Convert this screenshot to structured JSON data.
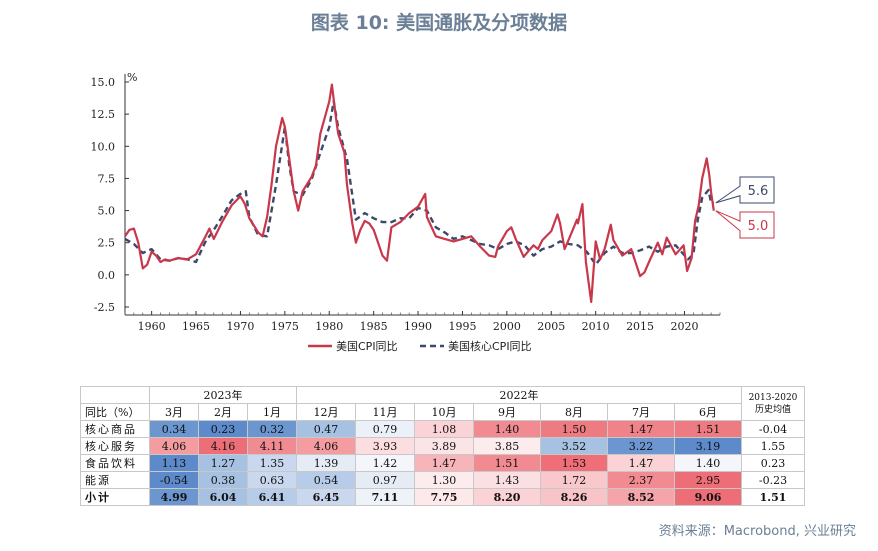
{
  "title": "图表 10: 美国通胀及分项数据",
  "source": "资料来源：Macrobond, 兴业研究",
  "chart_data": {
    "type": "line",
    "y_unit": "%",
    "ylim": [
      -2.5,
      15.0
    ],
    "yticks": [
      "15.0",
      "12.5",
      "10.0",
      "7.5",
      "5.0",
      "2.5",
      "0.0",
      "-2.5"
    ],
    "xlim": [
      1957,
      2024
    ],
    "xticks": [
      "1960",
      "1965",
      "1970",
      "1975",
      "1980",
      "1985",
      "1990",
      "1995",
      "2000",
      "2005",
      "2010",
      "2015",
      "2020"
    ],
    "series": [
      {
        "name": "美国CPI同比",
        "color": "#c8374a",
        "style": "solid",
        "end_label": "5.0",
        "points": [
          [
            1957,
            3.0
          ],
          [
            1957.5,
            3.5
          ],
          [
            1958,
            3.6
          ],
          [
            1958.5,
            2.5
          ],
          [
            1959,
            0.5
          ],
          [
            1959.5,
            0.8
          ],
          [
            1960,
            1.8
          ],
          [
            1960.5,
            1.5
          ],
          [
            1961,
            1.0
          ],
          [
            1961.5,
            1.2
          ],
          [
            1962,
            1.1
          ],
          [
            1963,
            1.3
          ],
          [
            1964,
            1.2
          ],
          [
            1965,
            1.6
          ],
          [
            1966,
            2.9
          ],
          [
            1966.5,
            3.6
          ],
          [
            1967,
            2.8
          ],
          [
            1968,
            4.2
          ],
          [
            1969,
            5.4
          ],
          [
            1970,
            6.1
          ],
          [
            1970.5,
            5.5
          ],
          [
            1971,
            4.4
          ],
          [
            1972,
            3.3
          ],
          [
            1972.5,
            3.0
          ],
          [
            1973,
            4.5
          ],
          [
            1973.5,
            7.0
          ],
          [
            1974,
            10.0
          ],
          [
            1974.7,
            12.2
          ],
          [
            1975,
            11.5
          ],
          [
            1975.5,
            9.0
          ],
          [
            1976,
            6.5
          ],
          [
            1976.5,
            5.0
          ],
          [
            1977,
            6.5
          ],
          [
            1978,
            7.6
          ],
          [
            1978.5,
            8.5
          ],
          [
            1979,
            11.0
          ],
          [
            1980,
            13.5
          ],
          [
            1980.3,
            14.8
          ],
          [
            1980.7,
            12.5
          ],
          [
            1981,
            11.0
          ],
          [
            1981.7,
            9.5
          ],
          [
            1982,
            7.0
          ],
          [
            1982.6,
            4.0
          ],
          [
            1983,
            2.5
          ],
          [
            1983.5,
            3.5
          ],
          [
            1984,
            4.2
          ],
          [
            1984.5,
            4.0
          ],
          [
            1985,
            3.5
          ],
          [
            1986,
            1.5
          ],
          [
            1986.5,
            1.1
          ],
          [
            1987,
            3.7
          ],
          [
            1988,
            4.1
          ],
          [
            1989,
            4.8
          ],
          [
            1990,
            5.3
          ],
          [
            1990.8,
            6.3
          ],
          [
            1991,
            4.5
          ],
          [
            1992,
            3.0
          ],
          [
            1993,
            2.8
          ],
          [
            1994,
            2.6
          ],
          [
            1995,
            2.8
          ],
          [
            1996,
            3.0
          ],
          [
            1997,
            2.2
          ],
          [
            1998,
            1.5
          ],
          [
            1998.7,
            1.4
          ],
          [
            1999,
            2.2
          ],
          [
            2000,
            3.4
          ],
          [
            2000.5,
            3.7
          ],
          [
            2001,
            2.8
          ],
          [
            2001.9,
            1.4
          ],
          [
            2002,
            1.5
          ],
          [
            2003,
            2.3
          ],
          [
            2003.5,
            2.0
          ],
          [
            2004,
            2.7
          ],
          [
            2005,
            3.4
          ],
          [
            2005.7,
            4.7
          ],
          [
            2006,
            4.0
          ],
          [
            2006.5,
            2.0
          ],
          [
            2007,
            2.8
          ],
          [
            2007.9,
            4.3
          ],
          [
            2008,
            4.0
          ],
          [
            2008.5,
            5.5
          ],
          [
            2008.9,
            1.0
          ],
          [
            2009.5,
            -2.1
          ],
          [
            2010,
            2.6
          ],
          [
            2010.5,
            1.2
          ],
          [
            2011,
            2.0
          ],
          [
            2011.7,
            3.9
          ],
          [
            2012,
            2.7
          ],
          [
            2013,
            1.5
          ],
          [
            2014,
            2.0
          ],
          [
            2015,
            -0.1
          ],
          [
            2015.5,
            0.2
          ],
          [
            2016,
            1.0
          ],
          [
            2017,
            2.5
          ],
          [
            2017.5,
            1.6
          ],
          [
            2018,
            2.9
          ],
          [
            2019,
            1.6
          ],
          [
            2019.9,
            2.3
          ],
          [
            2020.3,
            0.3
          ],
          [
            2020.8,
            1.3
          ],
          [
            2021.2,
            4.2
          ],
          [
            2021.6,
            5.4
          ],
          [
            2022,
            7.5
          ],
          [
            2022.5,
            9.06
          ],
          [
            2022.8,
            7.75
          ],
          [
            2023,
            6.41
          ],
          [
            2023.3,
            4.99
          ]
        ]
      },
      {
        "name": "美国核心CPI同比",
        "color": "#3b4a6b",
        "style": "dashed",
        "end_label": "5.6",
        "points": [
          [
            1957,
            2.8
          ],
          [
            1958,
            2.4
          ],
          [
            1959,
            1.7
          ],
          [
            1960,
            2.0
          ],
          [
            1961,
            1.2
          ],
          [
            1962,
            1.1
          ],
          [
            1963,
            1.3
          ],
          [
            1964,
            1.2
          ],
          [
            1965,
            1.0
          ],
          [
            1966,
            2.5
          ],
          [
            1967,
            3.5
          ],
          [
            1968,
            4.6
          ],
          [
            1969,
            5.8
          ],
          [
            1970,
            6.3
          ],
          [
            1970.6,
            6.5
          ],
          [
            1971,
            4.5
          ],
          [
            1972,
            3.1
          ],
          [
            1973,
            3.0
          ],
          [
            1974,
            7.0
          ],
          [
            1975,
            11.5
          ],
          [
            1975.5,
            8.5
          ],
          [
            1976,
            6.5
          ],
          [
            1977,
            6.2
          ],
          [
            1978,
            7.4
          ],
          [
            1979,
            9.5
          ],
          [
            1980,
            11.5
          ],
          [
            1980.5,
            13.5
          ],
          [
            1981,
            11.5
          ],
          [
            1982,
            9.0
          ],
          [
            1983,
            4.3
          ],
          [
            1984,
            4.8
          ],
          [
            1985,
            4.4
          ],
          [
            1986,
            4.1
          ],
          [
            1987,
            4.1
          ],
          [
            1988,
            4.4
          ],
          [
            1989,
            4.4
          ],
          [
            1990,
            5.2
          ],
          [
            1991,
            5.0
          ],
          [
            1992,
            3.7
          ],
          [
            1993,
            3.3
          ],
          [
            1994,
            2.8
          ],
          [
            1995,
            3.0
          ],
          [
            1996,
            2.7
          ],
          [
            1997,
            2.4
          ],
          [
            1998,
            2.3
          ],
          [
            1999,
            2.0
          ],
          [
            2000,
            2.4
          ],
          [
            2001,
            2.6
          ],
          [
            2002,
            2.3
          ],
          [
            2003,
            1.5
          ],
          [
            2004,
            2.0
          ],
          [
            2005,
            2.2
          ],
          [
            2006,
            2.6
          ],
          [
            2007,
            2.4
          ],
          [
            2008,
            2.3
          ],
          [
            2009,
            1.8
          ],
          [
            2010,
            0.8
          ],
          [
            2011,
            1.7
          ],
          [
            2012,
            2.2
          ],
          [
            2013,
            1.7
          ],
          [
            2014,
            1.7
          ],
          [
            2015,
            1.9
          ],
          [
            2016,
            2.2
          ],
          [
            2017,
            1.8
          ],
          [
            2018,
            2.2
          ],
          [
            2019,
            2.3
          ],
          [
            2020.4,
            1.2
          ],
          [
            2021,
            1.6
          ],
          [
            2021.5,
            4.3
          ],
          [
            2022,
            6.0
          ],
          [
            2022.7,
            6.6
          ],
          [
            2023,
            5.6
          ],
          [
            2023.3,
            5.6
          ]
        ]
      }
    ]
  },
  "table": {
    "header_col": "同比（%）",
    "groups": [
      {
        "label": "2023年",
        "span": 3
      },
      {
        "label": "2022年",
        "span": 7
      },
      {
        "label": "2013-2020历史均值",
        "span": 1
      }
    ],
    "months": [
      "3月",
      "2月",
      "1月",
      "12月",
      "11月",
      "10月",
      "9月",
      "8月",
      "7月",
      "6月"
    ],
    "rows": [
      {
        "label": "核心商品",
        "values": [
          "0.34",
          "0.23",
          "0.32",
          "0.47",
          "0.79",
          "1.08",
          "1.40",
          "1.50",
          "1.47",
          "1.51"
        ],
        "hist": "-0.04",
        "colors": [
          "#6b96cf",
          "#5c8acb",
          "#6b96cf",
          "#a7c1e2",
          "#ecf0f8",
          "#fbd3d6",
          "#f28b91",
          "#ef7b82",
          "#f0838a",
          "#ef7b82"
        ]
      },
      {
        "label": "核心服务",
        "values": [
          "4.06",
          "4.16",
          "4.11",
          "4.06",
          "3.93",
          "3.89",
          "3.85",
          "3.52",
          "3.22",
          "3.19"
        ],
        "hist": "1.55",
        "colors": [
          "#f59ca1",
          "#ee6e77",
          "#f18b92",
          "#f59ca1",
          "#fcdde0",
          "#fbe4e6",
          "#fdecee",
          "#a7c1e2",
          "#6b96cf",
          "#5c8acb"
        ]
      },
      {
        "label": "食品饮料",
        "values": [
          "1.13",
          "1.27",
          "1.35",
          "1.39",
          "1.42",
          "1.47",
          "1.51",
          "1.53",
          "1.47",
          "1.40"
        ],
        "hist": "0.23",
        "colors": [
          "#5c8acb",
          "#a7c1e2",
          "#c9d8ee",
          "#e6ecf6",
          "#f4f6fb",
          "#f7b5ba",
          "#f28b91",
          "#ef6e77",
          "#fbd3d6",
          "#f4f6fb"
        ]
      },
      {
        "label": "能源",
        "values": [
          "-0.54",
          "0.38",
          "0.63",
          "0.54",
          "0.97",
          "1.30",
          "1.43",
          "1.72",
          "2.37",
          "2.95"
        ],
        "hist": "-0.23",
        "colors": [
          "#5c8acb",
          "#a7c1e2",
          "#c9d8ee",
          "#b7cce8",
          "#e6ecf6",
          "#fdecee",
          "#fbe0e3",
          "#f9c8cc",
          "#f28b91",
          "#ee6e77"
        ]
      },
      {
        "label": "小计",
        "values": [
          "4.99",
          "6.04",
          "6.41",
          "6.45",
          "7.11",
          "7.75",
          "8.20",
          "8.26",
          "8.52",
          "9.06"
        ],
        "hist": "1.51",
        "colors": [
          "#6b96cf",
          "#a7c1e2",
          "#b7cce8",
          "#c9d8ee",
          "#eef2f9",
          "#fde8ea",
          "#fbd3d6",
          "#f9c4c8",
          "#f5a5aa",
          "#ee6e77"
        ],
        "total": true
      }
    ]
  }
}
